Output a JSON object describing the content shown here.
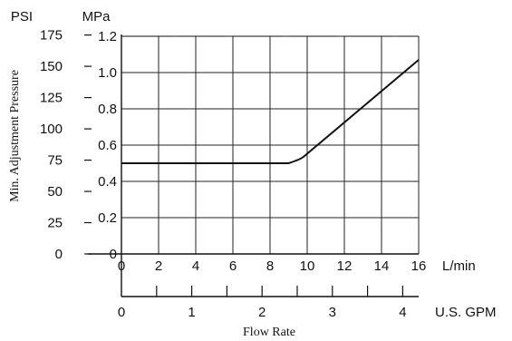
{
  "chart_data": {
    "type": "line",
    "xlabel": "Flow Rate",
    "ylabel": "Min. Adjustment Pressure",
    "x_axes": [
      {
        "unit": "L/min",
        "range": [
          0,
          16
        ],
        "ticks": [
          "0",
          "2",
          "4",
          "6",
          "8",
          "10",
          "12",
          "14",
          "16"
        ]
      },
      {
        "unit": "U.S. GPM",
        "range": [
          0,
          4.227
        ],
        "ticks": [
          "0",
          "1",
          "2",
          "3",
          "4"
        ]
      }
    ],
    "y_axes": [
      {
        "unit": "PSI",
        "range": [
          0,
          174
        ],
        "ticks": [
          "0",
          "25",
          "50",
          "75",
          "100",
          "125",
          "150",
          "175"
        ]
      },
      {
        "unit": "MPa",
        "range": [
          0,
          1.2
        ],
        "ticks": [
          "0",
          "0.2",
          "0.4",
          "0.6",
          "0.8",
          "1.0",
          "1.2"
        ]
      }
    ],
    "grid": true,
    "series": [
      {
        "x_unit": "L/min",
        "y_unit": "MPa",
        "points": [
          {
            "x": 0,
            "y": 0.5
          },
          {
            "x": 9.0,
            "y": 0.5
          },
          {
            "x": 9.6,
            "y": 0.52
          },
          {
            "x": 16,
            "y": 1.07
          }
        ]
      }
    ]
  }
}
